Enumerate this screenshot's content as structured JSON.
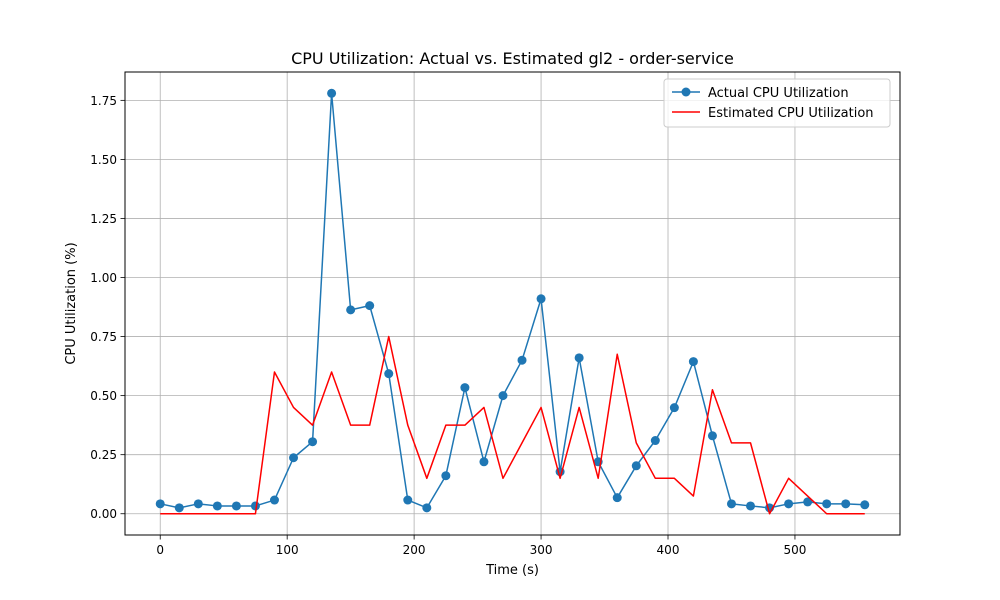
{
  "chart_data": {
    "type": "line",
    "title": "CPU Utilization: Actual vs. Estimated gl2 - order-service",
    "xlabel": "Time (s)",
    "ylabel": "CPU Utilization (%)",
    "xlim": [
      -27.75,
      582.75
    ],
    "ylim": [
      -0.09,
      1.87
    ],
    "x_ticks": [
      0,
      100,
      200,
      300,
      400,
      500
    ],
    "x_tick_labels": [
      "0",
      "100",
      "200",
      "300",
      "400",
      "500"
    ],
    "y_ticks": [
      0,
      0.25,
      0.5,
      0.75,
      1.0,
      1.25,
      1.5,
      1.75
    ],
    "y_tick_labels": [
      "0.00",
      "0.25",
      "0.50",
      "0.75",
      "1.00",
      "1.25",
      "1.50",
      "1.75"
    ],
    "grid": true,
    "legend_position": "top-right",
    "x": [
      0,
      15,
      30,
      45,
      60,
      75,
      90,
      105,
      120,
      135,
      150,
      165,
      180,
      195,
      210,
      225,
      240,
      255,
      270,
      285,
      300,
      315,
      330,
      345,
      360,
      375,
      390,
      405,
      420,
      435,
      450,
      465,
      480,
      495,
      510,
      525,
      540,
      555
    ],
    "series": [
      {
        "name": "Actual CPU Utilization",
        "color": "#1f77b4",
        "marker": "circle",
        "values": [
          0.042,
          0.025,
          0.042,
          0.033,
          0.033,
          0.033,
          0.058,
          0.237,
          0.305,
          1.78,
          0.863,
          0.881,
          0.593,
          0.058,
          0.025,
          0.161,
          0.534,
          0.22,
          0.5,
          0.65,
          0.91,
          0.178,
          0.66,
          0.22,
          0.068,
          0.203,
          0.31,
          0.449,
          0.644,
          0.33,
          0.042,
          0.033,
          0.025,
          0.042,
          0.05,
          0.042,
          0.042,
          0.038
        ]
      },
      {
        "name": "Estimated CPU Utilization",
        "color": "#ff0000",
        "marker": "none",
        "values": [
          0.0,
          0.0,
          0.0,
          0.0,
          0.0,
          0.0,
          0.6,
          0.45,
          0.375,
          0.6,
          0.375,
          0.375,
          0.75,
          0.375,
          0.15,
          0.375,
          0.375,
          0.45,
          0.15,
          0.3,
          0.45,
          0.15,
          0.45,
          0.15,
          0.675,
          0.3,
          0.15,
          0.15,
          0.075,
          0.525,
          0.3,
          0.3,
          0.0,
          0.15,
          0.075,
          0.0,
          0.0,
          0.0
        ]
      }
    ]
  }
}
